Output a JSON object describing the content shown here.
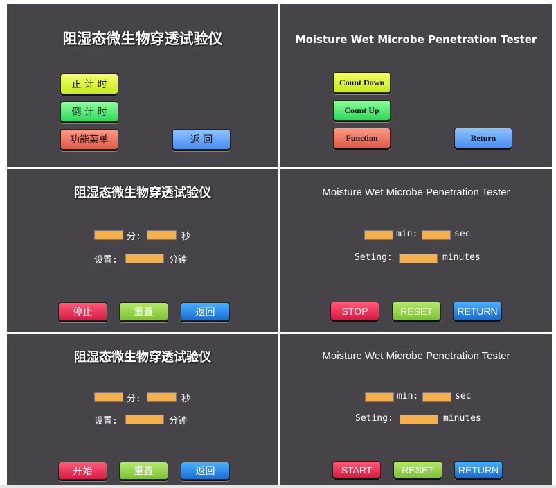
{
  "screens": {
    "main_cn": {
      "title": "阻湿态微生物穿透试验仪",
      "buttons": [
        "正 计 时",
        "倒 计 时",
        "功能菜单",
        "返 回"
      ]
    },
    "main_en": {
      "title": "Moisture Wet Microbe Penetration Tester",
      "buttons": [
        "Count Down",
        "Count Up",
        "Function",
        "Return"
      ]
    },
    "timer_cn_stop": {
      "title": "阻湿态微生物穿透试验仪",
      "min_label": "分:",
      "sec_label": "秒",
      "setting_label": "设置:",
      "minutes_label": "分钟",
      "buttons": [
        "停止",
        "重置",
        "返回"
      ]
    },
    "timer_en_stop": {
      "title": "Moisture Wet Microbe Penetration Tester",
      "min_label": "min:",
      "sec_label": "sec",
      "setting_label": "Seting:",
      "minutes_label": "minutes",
      "buttons": [
        "STOP",
        "RESET",
        "RETURN"
      ]
    },
    "timer_cn_start": {
      "title": "阻湿态微生物穿透试验仪",
      "min_label": "分:",
      "sec_label": "秒",
      "setting_label": "设置:",
      "minutes_label": "分钟",
      "buttons": [
        "开始",
        "重置",
        "返回"
      ]
    },
    "timer_en_start": {
      "title": "Moisture Wet Microbe Penetration Tester",
      "min_label": "min:",
      "sec_label": "sec",
      "setting_label": "Seting:",
      "minutes_label": "minutes",
      "buttons": [
        "START",
        "RESET",
        "RETURN"
      ]
    }
  },
  "colors": {
    "panel_bg": "#464448",
    "field": "#f4b04c"
  }
}
